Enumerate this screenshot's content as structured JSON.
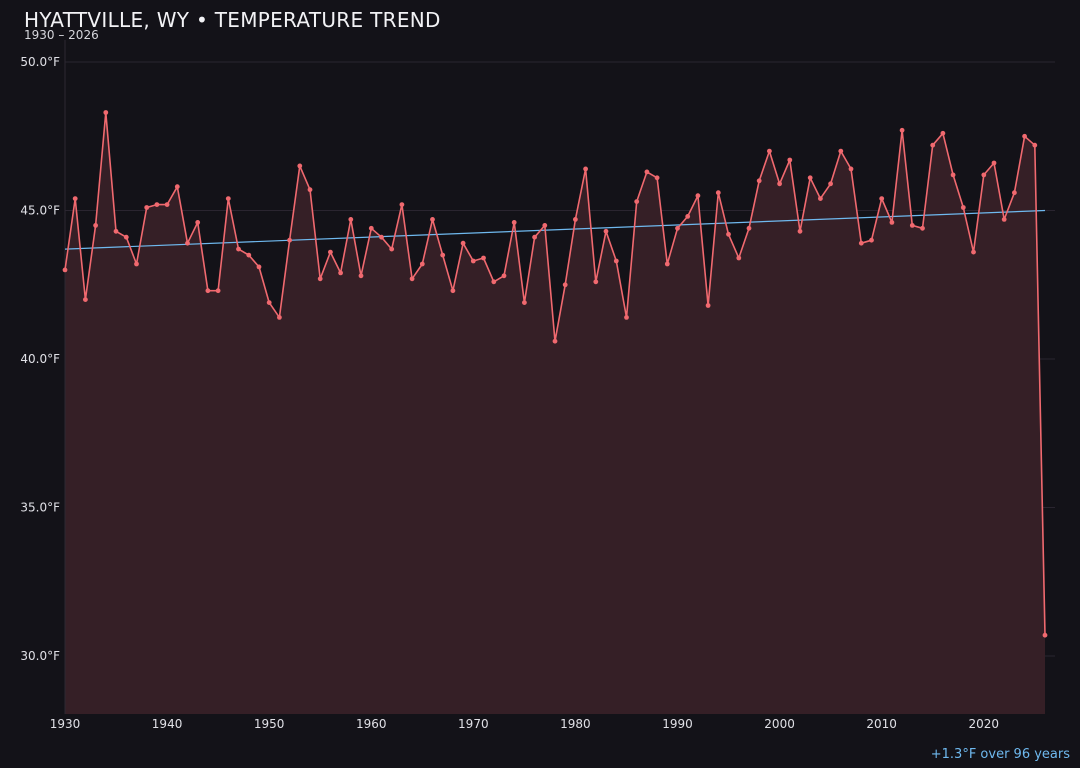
{
  "header": {
    "title": "HYATTVILLE, WY • TEMPERATURE TREND",
    "subtitle": "1930 – 2026"
  },
  "footer": {
    "trend_summary": "+1.3°F over 96 years"
  },
  "colors": {
    "background": "#131218",
    "series_line": "#f0696f",
    "series_fill": "#351f26",
    "trend_line": "#6fb9ef",
    "grid": "#2a2530",
    "text": "#e0e0e6"
  },
  "chart_data": {
    "type": "line",
    "title": "HYATTVILLE, WY • TEMPERATURE TREND",
    "subtitle": "1930 – 2026",
    "xlabel": "",
    "ylabel": "",
    "xlim": [
      1930,
      2026
    ],
    "ylim": [
      28,
      50
    ],
    "grid": true,
    "legend": "none",
    "y_ticks": [
      30,
      35,
      40,
      45,
      50
    ],
    "y_tick_labels": [
      "30.0°F",
      "35.0°F",
      "40.0°F",
      "45.0°F",
      "50.0°F"
    ],
    "x_ticks": [
      1930,
      1940,
      1950,
      1960,
      1970,
      1980,
      1990,
      2000,
      2010,
      2020
    ],
    "x_tick_labels": [
      "1930",
      "1940",
      "1950",
      "1960",
      "1970",
      "1980",
      "1990",
      "2000",
      "2010",
      "2020"
    ],
    "x": [
      1930,
      1931,
      1932,
      1933,
      1934,
      1935,
      1936,
      1937,
      1938,
      1939,
      1940,
      1941,
      1942,
      1943,
      1944,
      1945,
      1946,
      1947,
      1948,
      1949,
      1950,
      1951,
      1952,
      1953,
      1954,
      1955,
      1956,
      1957,
      1958,
      1959,
      1960,
      1961,
      1962,
      1963,
      1964,
      1965,
      1966,
      1967,
      1968,
      1969,
      1970,
      1971,
      1972,
      1973,
      1974,
      1975,
      1976,
      1977,
      1978,
      1979,
      1980,
      1981,
      1982,
      1983,
      1984,
      1985,
      1986,
      1987,
      1988,
      1989,
      1990,
      1991,
      1992,
      1993,
      1994,
      1995,
      1996,
      1997,
      1998,
      1999,
      2000,
      2001,
      2002,
      2003,
      2004,
      2005,
      2006,
      2007,
      2008,
      2009,
      2010,
      2011,
      2012,
      2013,
      2014,
      2015,
      2016,
      2017,
      2018,
      2019,
      2020,
      2021,
      2022,
      2023,
      2024,
      2025,
      2026
    ],
    "series": [
      {
        "values": [
          43.0,
          45.4,
          42.0,
          44.5,
          48.3,
          44.3,
          44.1,
          43.2,
          45.1,
          45.2,
          45.2,
          45.8,
          43.9,
          44.6,
          42.3,
          42.3,
          45.4,
          43.7,
          43.5,
          43.1,
          41.9,
          41.4,
          44.0,
          46.5,
          45.7,
          42.7,
          43.6,
          42.9,
          44.7,
          42.8,
          44.4,
          44.1,
          43.7,
          45.2,
          42.7,
          43.2,
          44.7,
          43.5,
          42.3,
          43.9,
          43.3,
          43.4,
          42.6,
          42.8,
          44.6,
          41.9,
          44.1,
          44.5,
          40.6,
          42.5,
          44.7,
          46.4,
          42.6,
          44.3,
          43.3,
          41.4,
          45.3,
          46.3,
          46.1,
          43.2,
          44.4,
          44.8,
          45.5,
          41.8,
          45.6,
          44.2,
          43.4,
          44.4,
          46.0,
          47.0,
          45.9,
          46.7,
          44.3,
          46.1,
          45.4,
          45.9,
          47.0,
          46.4,
          43.9,
          44.0,
          45.4,
          44.6,
          47.7,
          44.5,
          44.4,
          47.2,
          47.6,
          46.2,
          45.1,
          43.6,
          46.2,
          46.6,
          44.7,
          45.6,
          47.5,
          47.2,
          30.7
        ]
      }
    ],
    "trend": {
      "x": [
        1930,
        2026
      ],
      "y": [
        43.7,
        45.0
      ]
    }
  }
}
